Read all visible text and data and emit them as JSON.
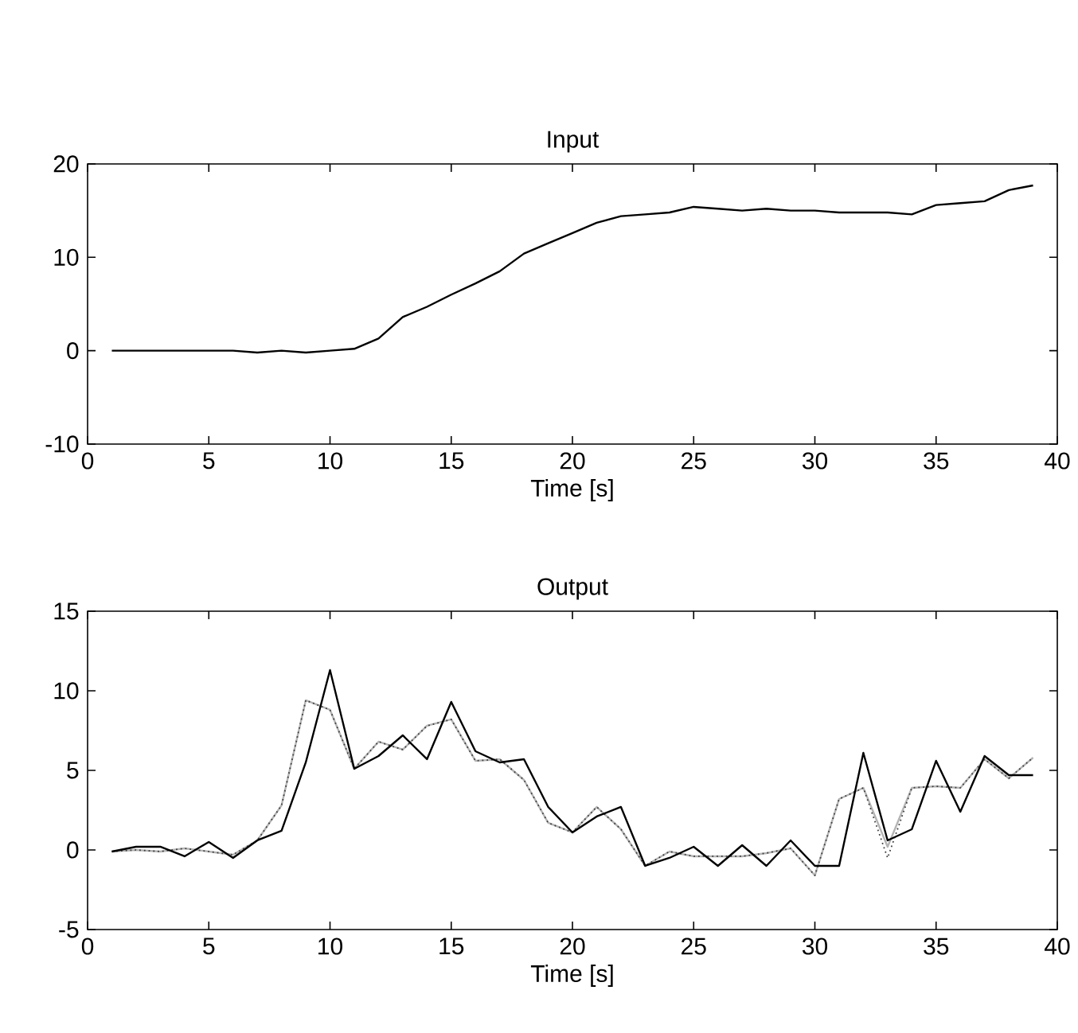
{
  "chart_data": [
    {
      "type": "line",
      "title": "Input",
      "xlabel": "Time [s]",
      "x": [
        1,
        2,
        3,
        4,
        5,
        6,
        7,
        8,
        9,
        10,
        11,
        12,
        13,
        14,
        15,
        16,
        17,
        18,
        19,
        20,
        21,
        22,
        23,
        24,
        25,
        26,
        27,
        28,
        29,
        30,
        31,
        32,
        33,
        34,
        35,
        36,
        37,
        38,
        39
      ],
      "series": [
        {
          "color": "#000000",
          "values": [
            0,
            0,
            0,
            0,
            0,
            0,
            -0.2,
            0,
            -0.2,
            0,
            0.2,
            1.3,
            3.6,
            4.7,
            6,
            7.2,
            8.5,
            10.4,
            11.5,
            12.6,
            13.7,
            14.4,
            14.6,
            14.8,
            15.4,
            15.2,
            15,
            15.2,
            15,
            15,
            14.8,
            14.8,
            14.8,
            14.6,
            15.6,
            15.8,
            16,
            17.2,
            17.7
          ]
        }
      ],
      "xlim": [
        0,
        40
      ],
      "ylim": [
        -10,
        20
      ],
      "xticks": [
        0,
        5,
        10,
        15,
        20,
        25,
        30,
        35,
        40
      ],
      "yticks": [
        -10,
        0,
        10,
        20
      ],
      "line_style": "solid"
    },
    {
      "type": "line",
      "title": "Output",
      "xlabel": "Time [s]",
      "x": [
        1,
        2,
        3,
        4,
        5,
        6,
        7,
        8,
        9,
        10,
        11,
        12,
        13,
        14,
        15,
        16,
        17,
        18,
        19,
        20,
        21,
        22,
        23,
        24,
        25,
        26,
        27,
        28,
        29,
        30,
        31,
        32,
        33,
        34,
        35,
        36,
        37,
        38,
        39
      ],
      "series": [
        {
          "color": "#b4b4b4",
          "values": [
            -0.1,
            0,
            -0.1,
            0.1,
            -0.1,
            -0.3,
            0.6,
            2.8,
            9.4,
            8.8,
            5.1,
            6.8,
            6.3,
            7.8,
            8.2,
            5.6,
            5.7,
            4.4,
            1.7,
            1.1,
            2.7,
            1.3,
            -1.0,
            -0.1,
            -0.4,
            -0.4,
            -0.4,
            -0.2,
            0.1,
            -1.6,
            3.2,
            3.9,
            0.2,
            3.9,
            4.0,
            3.9,
            5.7,
            4.5,
            5.8
          ]
        },
        {
          "color": "#404040",
          "line_style": "dotted",
          "values": [
            -0.1,
            0,
            -0.1,
            0.1,
            -0.1,
            -0.3,
            0.6,
            2.8,
            9.4,
            8.8,
            5.1,
            6.8,
            6.3,
            7.8,
            8.2,
            5.6,
            5.7,
            4.4,
            1.7,
            1.1,
            2.7,
            1.3,
            -1.0,
            -0.1,
            -0.4,
            -0.4,
            -0.4,
            -0.2,
            0.1,
            -1.6,
            3.2,
            3.9,
            -0.5,
            3.9,
            4.0,
            3.9,
            5.7,
            4.5,
            5.8
          ]
        },
        {
          "color": "#000000",
          "values": [
            -0.1,
            0.2,
            0.2,
            -0.4,
            0.5,
            -0.5,
            0.6,
            1.2,
            5.5,
            11.3,
            5.1,
            5.9,
            7.2,
            5.7,
            9.3,
            6.2,
            5.5,
            5.7,
            2.7,
            1.1,
            2.1,
            2.7,
            -1.0,
            -0.5,
            0.2,
            -1.0,
            0.3,
            -1.0,
            0.6,
            -1.0,
            -1.0,
            6.1,
            0.6,
            1.3,
            5.6,
            2.4,
            5.9,
            4.7,
            4.7
          ]
        }
      ],
      "xlim": [
        0,
        40
      ],
      "ylim": [
        -5,
        15
      ],
      "xticks": [
        0,
        5,
        10,
        15,
        20,
        25,
        30,
        35,
        40
      ],
      "yticks": [
        -5,
        0,
        5,
        10,
        15
      ],
      "line_style": "solid"
    }
  ]
}
